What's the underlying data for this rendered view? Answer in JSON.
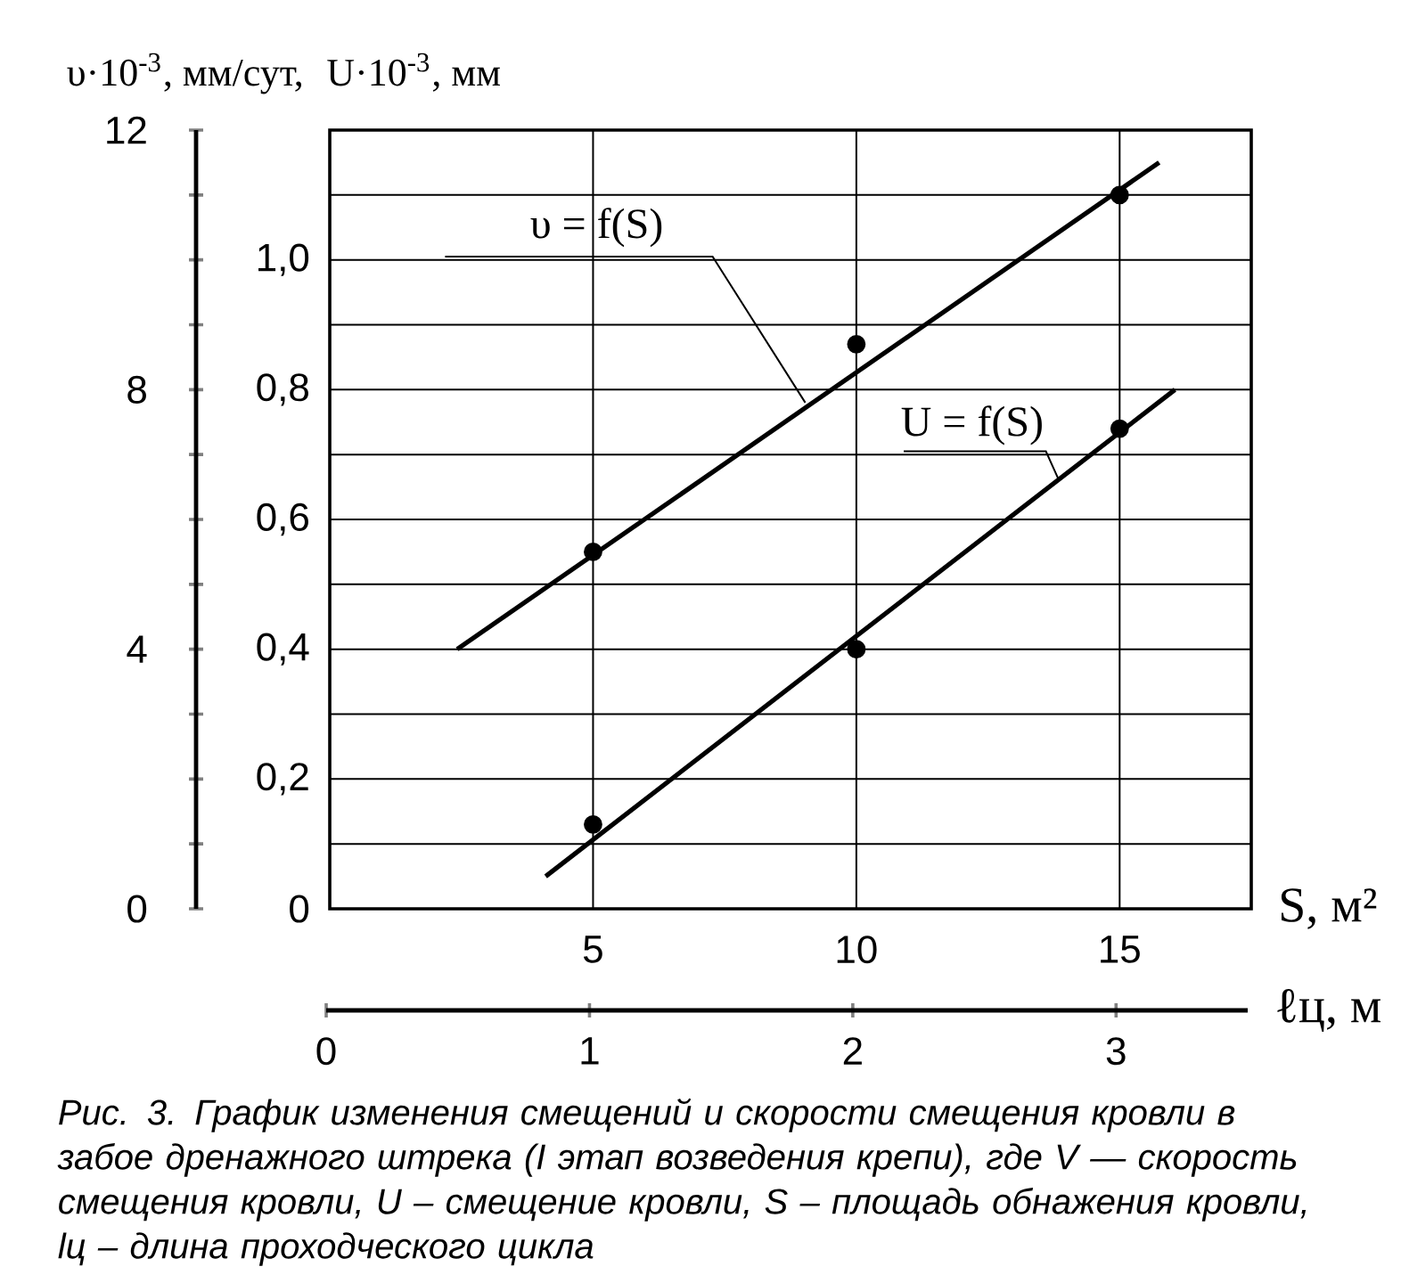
{
  "chart_data": {
    "type": "line",
    "xlabel": "S, м²",
    "ylabel": "U·10$^{-3}$, мм",
    "y2label": "υ·10$^{-3}$, мм/сут,",
    "x2label": "ℓц, м",
    "xlim": [
      0,
      17.5
    ],
    "xticks": [
      5,
      10,
      15
    ],
    "x2lim": [
      0,
      3.5
    ],
    "x2ticks": [
      0,
      1,
      2,
      3
    ],
    "ylim": [
      0,
      1.2
    ],
    "yticks": [
      0,
      {
        "value": 0.1,
        "label": null
      },
      {
        "value": 0.2,
        "label": "0,2"
      },
      {
        "value": 0.3,
        "label": null
      },
      {
        "value": 0.4,
        "label": "0,4"
      },
      {
        "value": 0.5,
        "label": null
      },
      {
        "value": 0.6,
        "label": "0,6"
      },
      {
        "value": 0.7,
        "label": null
      },
      {
        "value": 0.8,
        "label": "0,8"
      },
      {
        "value": 0.9,
        "label": null
      },
      {
        "value": 1.0,
        "label": "1,0"
      },
      {
        "value": 1.1,
        "label": null
      },
      {
        "value": 1.2,
        "label": null
      }
    ],
    "y2lim": [
      0,
      12
    ],
    "y2ticks": [
      0,
      {
        "value": 1,
        "label": null
      },
      {
        "value": 2,
        "label": null
      },
      {
        "value": 3,
        "label": null
      },
      4,
      {
        "value": 5,
        "label": null
      },
      {
        "value": 6,
        "label": null
      },
      {
        "value": 7,
        "label": null
      },
      8,
      {
        "value": 9,
        "label": null
      },
      {
        "value": 10,
        "label": null
      },
      {
        "value": 11,
        "label": null
      },
      12
    ],
    "grid": true,
    "series": [
      {
        "name": "υ = f(S)",
        "axis": "y2",
        "color": "#000000",
        "x": [
          2.42,
          15.75
        ],
        "values": [
          4.0,
          11.5
        ]
      },
      {
        "type": "scatter",
        "marker": "circle",
        "axis": "y2",
        "color": "#000000",
        "x": [
          5,
          10,
          15
        ],
        "values": [
          5.5,
          8.7,
          11.0
        ]
      },
      {
        "name": "U = f(S)",
        "color": "#000000",
        "x": [
          4.1,
          16.05
        ],
        "values": [
          0.05,
          0.8
        ]
      },
      {
        "type": "scatter",
        "marker": "circle",
        "color": "#000000",
        "x": [
          5,
          10,
          15
        ],
        "values": [
          0.13,
          0.4,
          0.74
        ]
      }
    ],
    "annotations": [
      "Рис. 3. График изменения смещений и скорости смещения кровли в забое дренажного штрека (I этап возведения крепи), где V — скорость смещения кровли, U – смещение кровли, S – площадь обнажения кровли, lц – длина проходческого цикла"
    ]
  }
}
